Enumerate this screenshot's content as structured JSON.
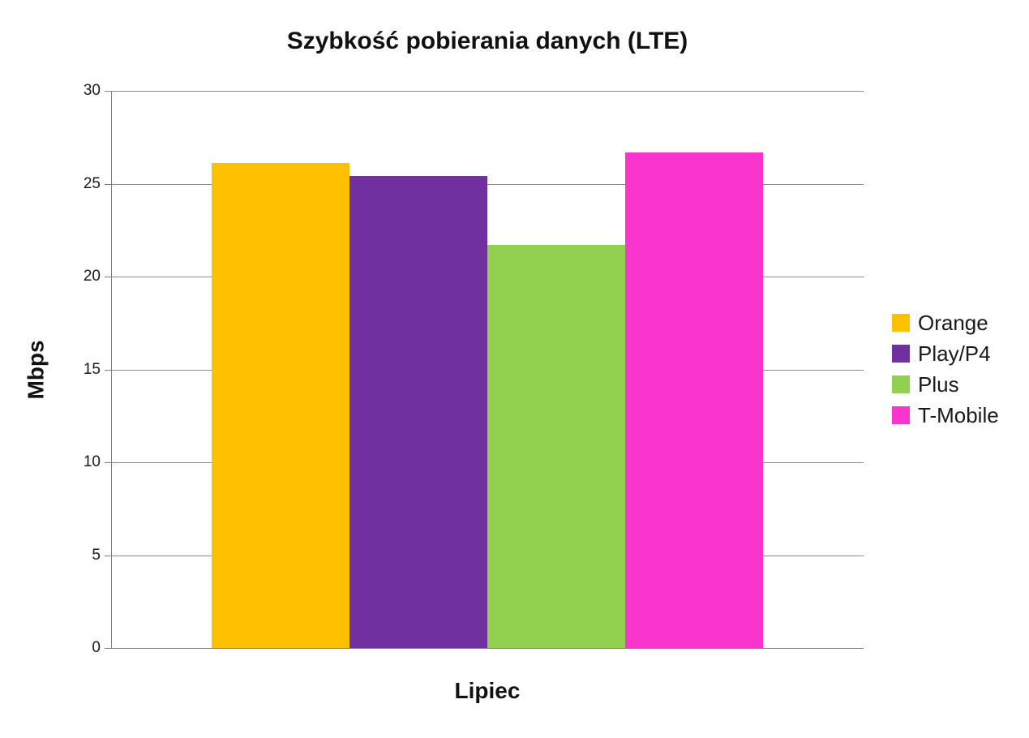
{
  "page": {
    "background": "#ffffff"
  },
  "chart_data": {
    "type": "bar",
    "title": "Szybkość pobierania danych (LTE)",
    "xlabel": "Lipiec",
    "ylabel": "Mbps",
    "categories": [
      "Lipiec"
    ],
    "series": [
      {
        "name": "Orange",
        "values": [
          26.1
        ],
        "color": "#FFC000"
      },
      {
        "name": "Play/P4",
        "values": [
          25.4
        ],
        "color": "#7030A0"
      },
      {
        "name": "Plus",
        "values": [
          21.7
        ],
        "color": "#92D050"
      },
      {
        "name": "T-Mobile",
        "values": [
          26.7
        ],
        "color": "#F935CE"
      }
    ],
    "ylim": [
      0,
      30
    ],
    "yticks": [
      0,
      5,
      10,
      15,
      20,
      25,
      30
    ],
    "grid": true,
    "legend_position": "right",
    "colors": {
      "gridline": "#8C8C8C",
      "axis": "#808080",
      "text": "#1A1A1A"
    }
  }
}
